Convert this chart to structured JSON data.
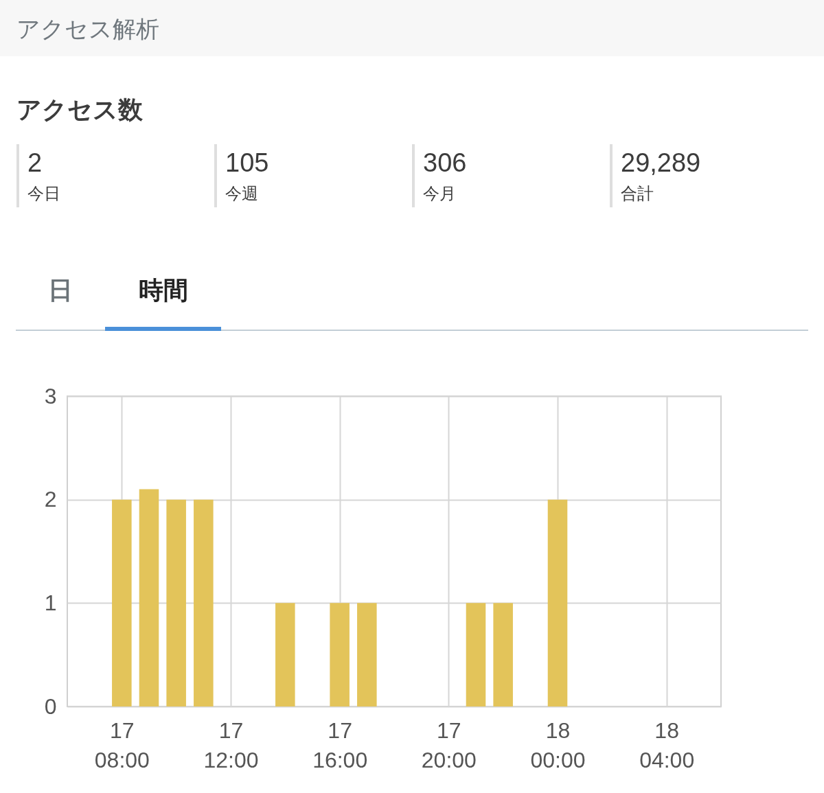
{
  "chart_data": [
    {
      "type": "other",
      "title": "アクセス解析",
      "subtitle": "アクセス数",
      "categories": [
        "今日",
        "今週",
        "今月",
        "合計"
      ],
      "values": [
        2,
        105,
        306,
        29289
      ],
      "value_labels": [
        "2",
        "105",
        "306",
        "29,289"
      ]
    },
    {
      "type": "bar",
      "annotations": [
        "日",
        "時間"
      ],
      "categories": [
        null,
        null,
        "17 08:00",
        null,
        null,
        null,
        "17 12:00",
        null,
        null,
        null,
        "17 16:00",
        null,
        null,
        null,
        "17 20:00",
        null,
        null,
        null,
        "18 00:00",
        null,
        null,
        null,
        "18 04:00",
        null,
        null
      ],
      "values": [
        null,
        null,
        2,
        2.1,
        2,
        2,
        null,
        null,
        1,
        null,
        1,
        1,
        null,
        null,
        null,
        1,
        1,
        null,
        2,
        null,
        null,
        null,
        null,
        null,
        null
      ],
      "color": "#e3c45a",
      "ylim": [
        0,
        3
      ],
      "yticks": [
        0,
        1,
        2,
        3
      ],
      "grid": true
    }
  ]
}
